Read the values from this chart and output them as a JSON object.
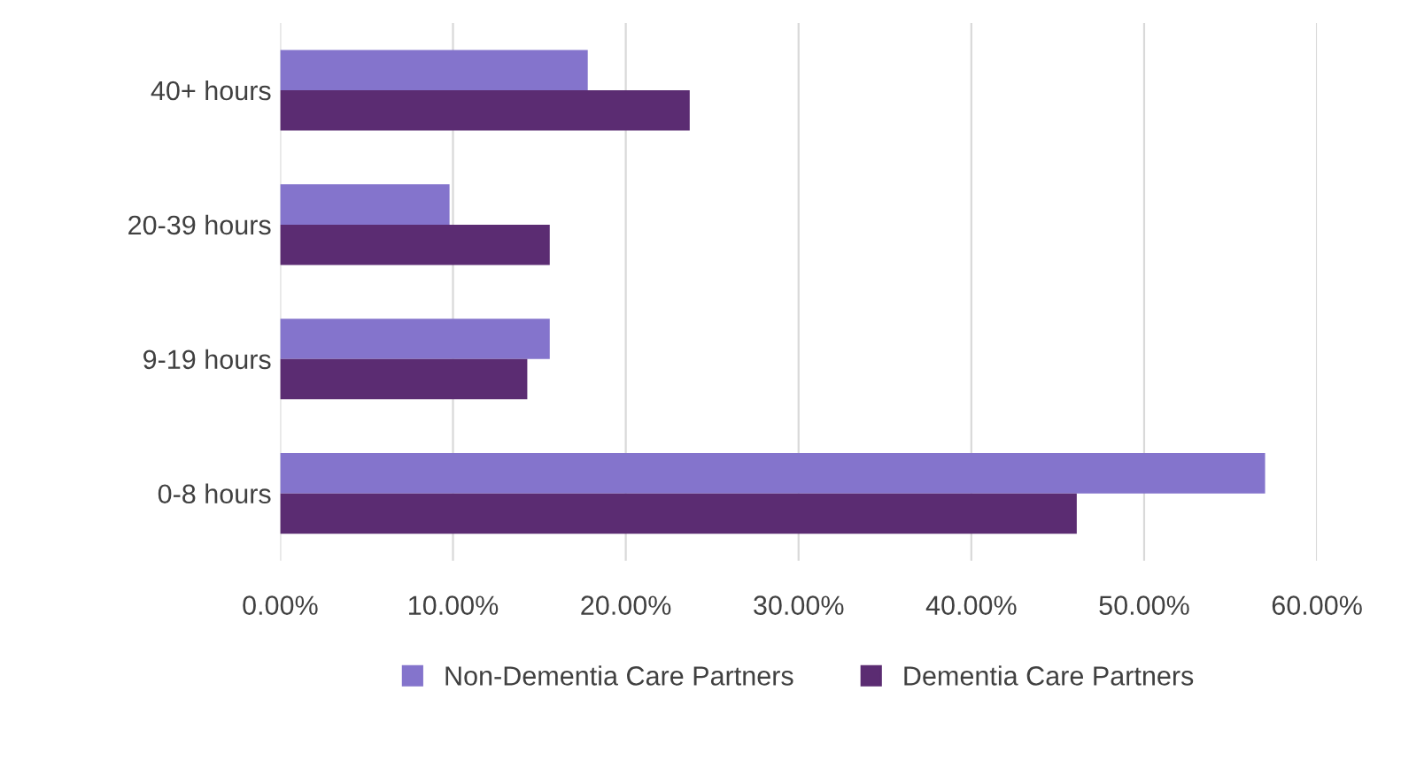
{
  "chart_data": {
    "type": "bar",
    "orientation": "horizontal",
    "categories": [
      "40+ hours",
      "20-39 hours",
      "9-19 hours",
      "0-8 hours"
    ],
    "series": [
      {
        "name": "Non-Dementia Care Partners",
        "color": "#8474cc",
        "values": [
          0.178,
          0.098,
          0.156,
          0.57
        ]
      },
      {
        "name": "Dementia Care Partners",
        "color": "#5b2c72",
        "values": [
          0.237,
          0.156,
          0.143,
          0.461
        ]
      }
    ],
    "xlim": [
      0,
      0.6
    ],
    "xticks": [
      {
        "value": 0,
        "label": "0.00%"
      },
      {
        "value": 0.1,
        "label": "10.00%"
      },
      {
        "value": 0.2,
        "label": "20.00%"
      },
      {
        "value": 0.3,
        "label": "30.00%"
      },
      {
        "value": 0.4,
        "label": "40.00%"
      },
      {
        "value": 0.5,
        "label": "50.00%"
      },
      {
        "value": 0.6,
        "label": "60.00%"
      }
    ],
    "grid": "x",
    "legend": "bottom"
  }
}
